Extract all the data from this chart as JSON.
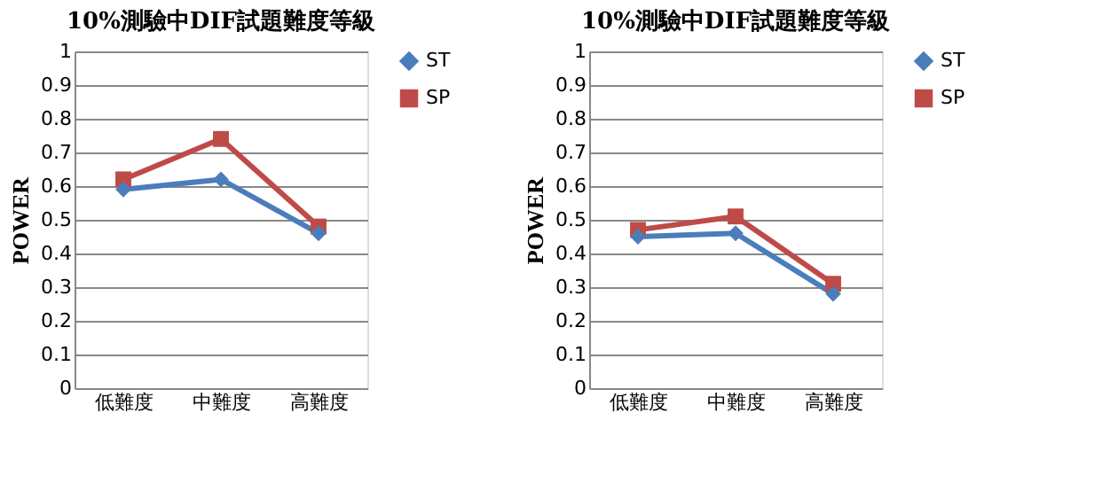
{
  "chart_data": [
    {
      "type": "line",
      "title": "10%測驗中DIF試題難度等級",
      "ylabel": "POWER",
      "categories": [
        "低難度",
        "中難度",
        "高難度"
      ],
      "ylim": [
        0,
        1
      ],
      "yticks": [
        0,
        0.1,
        0.2,
        0.3,
        0.4,
        0.5,
        0.6,
        0.7,
        0.8,
        0.9,
        1
      ],
      "grid": "y",
      "legend": "right",
      "series": [
        {
          "name": "ST",
          "color": "#4a7ebb",
          "marker": "diamond",
          "values": [
            0.59,
            0.62,
            0.46
          ]
        },
        {
          "name": "SP",
          "color": "#be4b48",
          "marker": "square",
          "values": [
            0.62,
            0.74,
            0.48
          ]
        }
      ]
    },
    {
      "type": "line",
      "title": "10%測驗中DIF試題難度等級",
      "ylabel": "POWER",
      "categories": [
        "低難度",
        "中難度",
        "高難度"
      ],
      "ylim": [
        0,
        1
      ],
      "yticks": [
        0,
        0.1,
        0.2,
        0.3,
        0.4,
        0.5,
        0.6,
        0.7,
        0.8,
        0.9,
        1
      ],
      "grid": "y",
      "legend": "right",
      "series": [
        {
          "name": "ST",
          "color": "#4a7ebb",
          "marker": "diamond",
          "values": [
            0.45,
            0.46,
            0.28
          ]
        },
        {
          "name": "SP",
          "color": "#be4b48",
          "marker": "square",
          "values": [
            0.47,
            0.51,
            0.31
          ]
        }
      ]
    }
  ]
}
